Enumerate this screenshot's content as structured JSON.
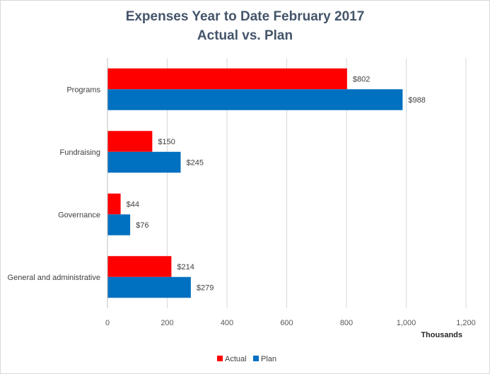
{
  "chart_data": {
    "type": "bar",
    "orientation": "horizontal",
    "title": "Expenses Year to Date February 2017",
    "subtitle": "Actual vs. Plan",
    "xlabel": "Thousands",
    "ylabel": "",
    "xlim": [
      0,
      1200
    ],
    "x_ticks": [
      "0",
      "200",
      "400",
      "600",
      "800",
      "1,000",
      "1,200"
    ],
    "grid": "vertical",
    "legend_position": "bottom",
    "categories": [
      "Programs",
      "Fundraising",
      "Governance",
      "General and administrative"
    ],
    "series": [
      {
        "name": "Actual",
        "color": "#ff0000",
        "values": [
          802,
          150,
          44,
          214
        ],
        "labels": [
          "$802",
          "$150",
          "$44",
          "$214"
        ]
      },
      {
        "name": "Plan",
        "color": "#0070c0",
        "values": [
          988,
          245,
          76,
          279
        ],
        "labels": [
          "$988",
          "$245",
          "$76",
          "$279"
        ]
      }
    ]
  }
}
